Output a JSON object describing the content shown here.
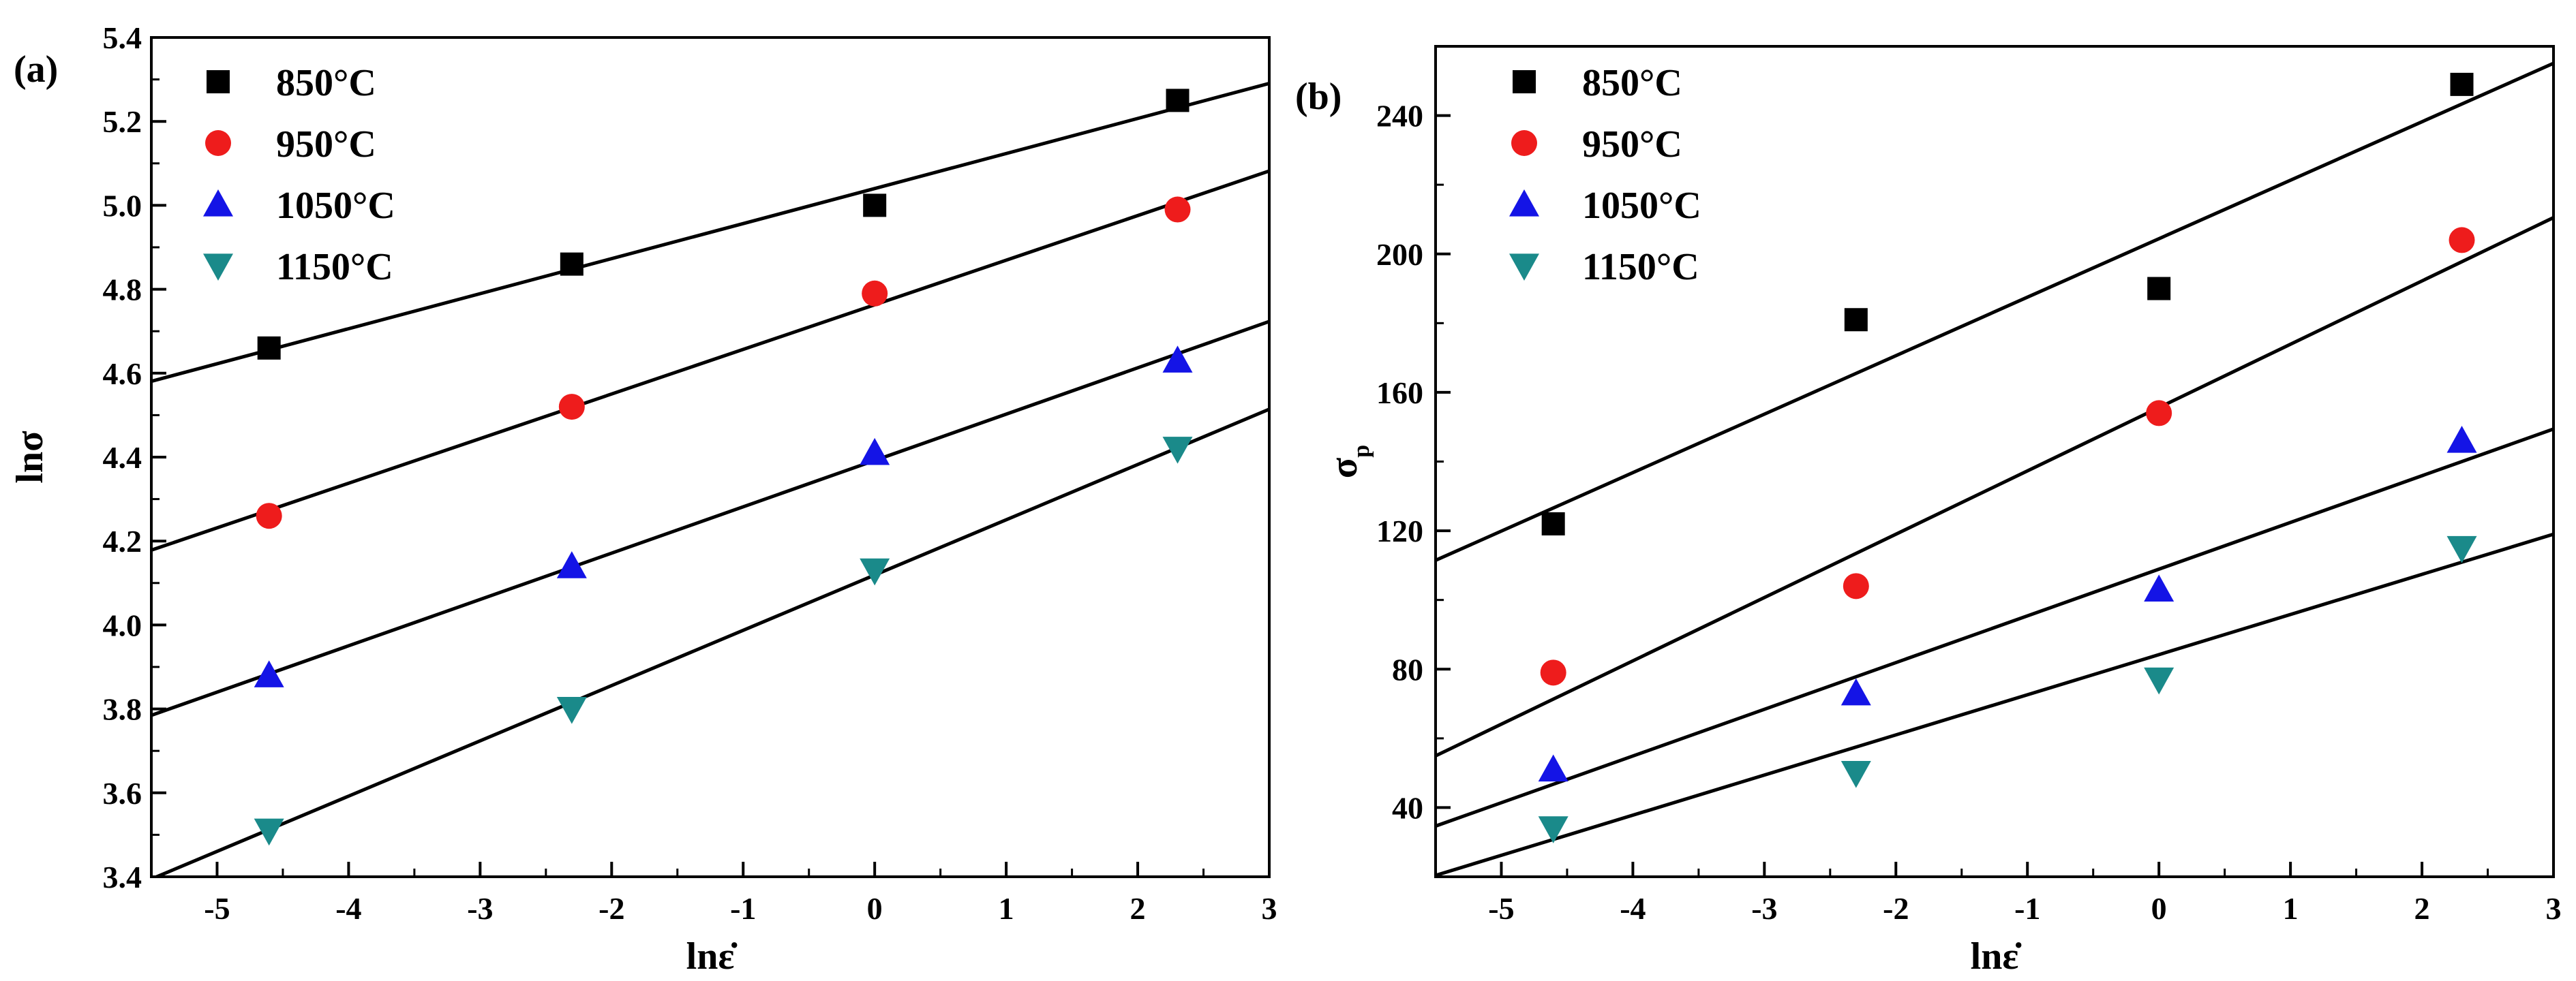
{
  "colors": {
    "850": "#000000",
    "950": "#ee1c1c",
    "1050": "#1414e6",
    "1150": "#1a8a8a",
    "axis": "#000000",
    "fit_line": "#000000"
  },
  "chart_data": [
    {
      "id": "a",
      "type": "scatter",
      "panel_label": "(a)",
      "title": "",
      "xlabel": "lnε̇",
      "ylabel": "lnσ",
      "ylabel_sub": "",
      "xlim": [
        -5.5,
        3
      ],
      "ylim": [
        3.4,
        5.4
      ],
      "x_ticks": [
        -5,
        -4,
        -3,
        -2,
        -1,
        0,
        1,
        2,
        3
      ],
      "x_tick_labels": [
        "-5",
        "-4",
        "-3",
        "-2",
        "-1",
        "0",
        "1",
        "2",
        "3"
      ],
      "y_ticks": [
        3.4,
        3.6,
        3.8,
        4.0,
        4.2,
        4.4,
        4.6,
        4.8,
        5.0,
        5.2,
        5.4
      ],
      "y_tick_labels": [
        "3.4",
        "3.6",
        "3.8",
        "4.0",
        "4.2",
        "4.4",
        "4.6",
        "4.8",
        "5.0",
        "5.2",
        "5.4"
      ],
      "grid": false,
      "legend_position": "top-left",
      "x": [
        -4.605,
        -2.303,
        0,
        2.303
      ],
      "series": [
        {
          "name": "850°C",
          "key": "850",
          "marker": "square",
          "values": [
            4.66,
            4.86,
            5.0,
            5.25
          ],
          "fit": {
            "slope": 0.0835,
            "intercept": 5.04
          }
        },
        {
          "name": "950°C",
          "key": "950",
          "marker": "circle",
          "values": [
            4.26,
            4.52,
            4.79,
            4.99
          ],
          "fit": {
            "slope": 0.1063,
            "intercept": 4.763
          }
        },
        {
          "name": "1050°C",
          "key": "1050",
          "marker": "triangle-up",
          "values": [
            3.88,
            4.14,
            4.41,
            4.63
          ],
          "fit": {
            "slope": 0.1104,
            "intercept": 4.392
          }
        },
        {
          "name": "1150°C",
          "key": "1150",
          "marker": "triangle-down",
          "values": [
            3.51,
            3.8,
            4.13,
            4.42
          ],
          "fit": {
            "slope": 0.1317,
            "intercept": 4.119
          }
        }
      ]
    },
    {
      "id": "b",
      "type": "scatter",
      "panel_label": "(b)",
      "title": "",
      "xlabel": "lnε̇",
      "ylabel": "σ",
      "ylabel_sub": "p",
      "xlim": [
        -5.5,
        3
      ],
      "ylim": [
        20,
        260
      ],
      "x_ticks": [
        -5,
        -4,
        -3,
        -2,
        -1,
        0,
        1,
        2,
        3
      ],
      "x_tick_labels": [
        "-5",
        "-4",
        "-3",
        "-2",
        "-1",
        "0",
        "1",
        "2",
        "3"
      ],
      "y_ticks": [
        40,
        80,
        120,
        160,
        200,
        240
      ],
      "y_tick_labels": [
        "40",
        "80",
        "120",
        "160",
        "200",
        "240"
      ],
      "grid": false,
      "legend_position": "top-left",
      "x": [
        -4.605,
        -2.303,
        0,
        2.303
      ],
      "series": [
        {
          "name": "850°C",
          "key": "850",
          "marker": "square",
          "values": [
            122,
            181,
            190,
            249
          ],
          "fit": {
            "slope": 16.9,
            "intercept": 204.4
          }
        },
        {
          "name": "950°C",
          "key": "950",
          "marker": "circle",
          "values": [
            79,
            104,
            154,
            204
          ],
          "fit": {
            "slope": 18.3,
            "intercept": 155.6
          }
        },
        {
          "name": "1050°C",
          "key": "1050",
          "marker": "triangle-up",
          "values": [
            51,
            73,
            103,
            146
          ],
          "fit": {
            "slope": 13.5,
            "intercept": 108.9
          }
        },
        {
          "name": "1150°C",
          "key": "1150",
          "marker": "triangle-down",
          "values": [
            34,
            50,
            77,
            115
          ],
          "fit": {
            "slope": 11.6,
            "intercept": 84.2
          }
        }
      ]
    }
  ]
}
